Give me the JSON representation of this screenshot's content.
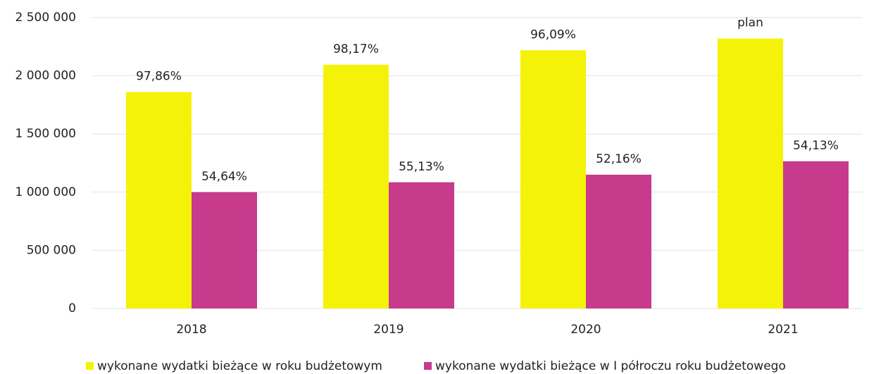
{
  "chart_data": {
    "type": "bar",
    "categories": [
      "2018",
      "2019",
      "2020",
      "2021"
    ],
    "series": [
      {
        "name": "wykonane wydatki bieżące w roku budżetowym",
        "color": "#f5f20a",
        "values": [
          1860000,
          2095000,
          2220000,
          2320000
        ],
        "annotations": [
          "97,86%",
          "98,17%",
          "96,09%",
          "plan"
        ]
      },
      {
        "name": "wykonane wydatki bieżące w I półroczu roku budżetowego",
        "color": "#c73a8c",
        "values": [
          1000000,
          1085000,
          1150000,
          1265000
        ],
        "annotations": [
          "54,64%",
          "55,13%",
          "52,16%",
          "54,13%"
        ]
      }
    ],
    "ylim": [
      0,
      2500000
    ],
    "yticks": [
      0,
      {
        "value": 500000,
        "label": "500 000"
      },
      {
        "value": 1000000,
        "label": "1 000 000"
      },
      {
        "value": 1500000,
        "label": "1 500 000"
      },
      {
        "value": 2000000,
        "label": "2 000 000"
      },
      {
        "value": 2500000,
        "label": "2 500 000"
      }
    ],
    "grid": true,
    "legend": "bottom"
  }
}
